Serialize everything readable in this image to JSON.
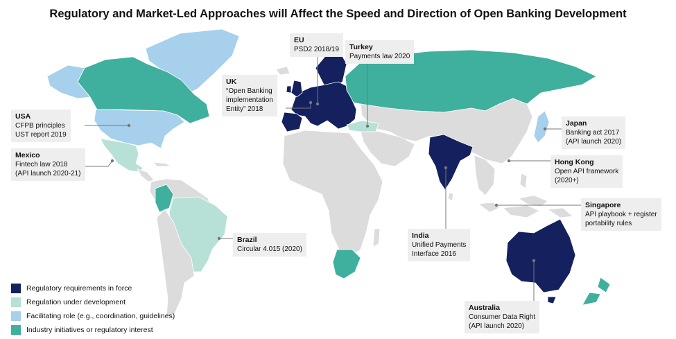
{
  "title": "Regulatory and Market-Led Approaches will Affect the Speed and Direction of Open Banking Development",
  "colors": {
    "land": "#dcdcdc",
    "regulatory": "#14215e",
    "under_development": "#b7e0d6",
    "facilitating": "#a6d0ec",
    "industry": "#3faf9e",
    "callout_bg": "#eeeeee",
    "leader": "#777777"
  },
  "legend": [
    {
      "label": "Regulatory requirements in force",
      "color": "#14215e"
    },
    {
      "label": "Regulation under development",
      "color": "#b7e0d6"
    },
    {
      "label": "Facilitating role (e.g., coordination, guidelines)",
      "color": "#a6d0ec"
    },
    {
      "label": "Industry initiatives or regulatory interest",
      "color": "#3faf9e"
    }
  ],
  "callouts": {
    "usa": {
      "name": "USA",
      "lines": [
        "CFPB principles",
        "UST report 2019"
      ]
    },
    "mexico": {
      "name": "Mexico",
      "lines": [
        "Fintech law 2018",
        "(API launch 2020-21)"
      ]
    },
    "uk": {
      "name": "UK",
      "lines": [
        "“Open Banking",
        "implementation",
        "Entity” 2018"
      ]
    },
    "eu": {
      "name": "EU",
      "lines": [
        "PSD2 2018/19"
      ]
    },
    "turkey": {
      "name": "Turkey",
      "lines": [
        "Payments law 2020"
      ]
    },
    "japan": {
      "name": "Japan",
      "lines": [
        "Banking act 2017",
        "(API launch 2020)"
      ]
    },
    "hongkong": {
      "name": "Hong Kong",
      "lines": [
        "Open API framework",
        "(2020+)"
      ]
    },
    "singapore": {
      "name": "Singapore",
      "lines": [
        "API playbook + register",
        "portability rules"
      ]
    },
    "india": {
      "name": "India",
      "lines": [
        "Unified Payments",
        "Interface 2016"
      ]
    },
    "brazil": {
      "name": "Brazil",
      "lines": [
        "Circular 4.015 (2020)"
      ]
    },
    "australia": {
      "name": "Australia",
      "lines": [
        "Consumer Data Right",
        "(API launch 2020)"
      ]
    }
  }
}
